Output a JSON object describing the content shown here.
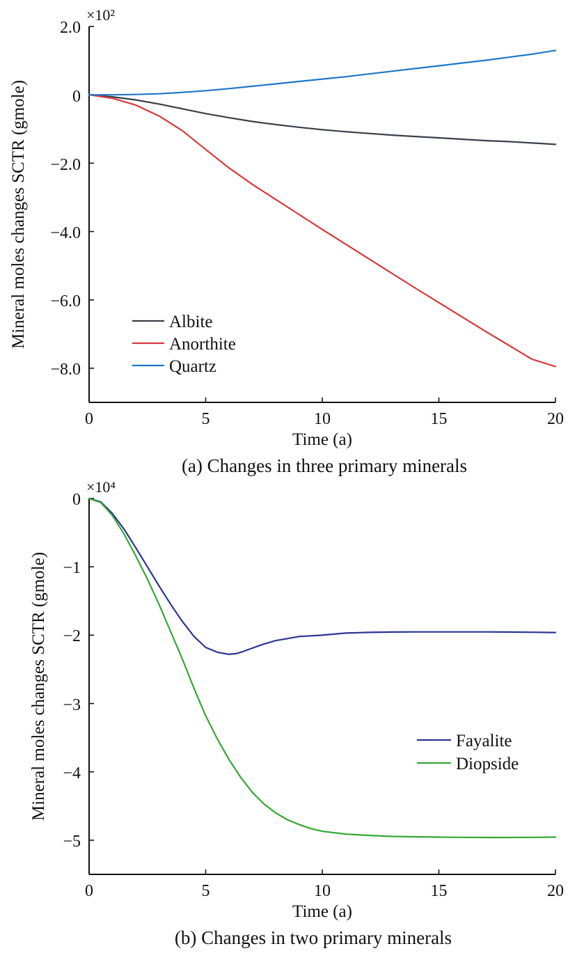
{
  "chart_data": [
    {
      "type": "line",
      "caption": "(a) Changes in three primary minerals",
      "xlabel": "Time (a)",
      "ylabel": "Mineral moles changes SCTR (gmole)",
      "y_multiplier": "×10²",
      "xlim": [
        0,
        20
      ],
      "ylim": [
        -9.0,
        2.0
      ],
      "xticks": [
        0,
        5,
        10,
        15,
        20
      ],
      "xtick_labels": [
        "0",
        "5",
        "10",
        "15",
        "20"
      ],
      "yticks": [
        2.0,
        0,
        -2.0,
        -4.0,
        -6.0,
        -8.0
      ],
      "ytick_labels": [
        "2.0",
        "0",
        "−2.0",
        "−4.0",
        "−6.0",
        "−8.0"
      ],
      "legend_position": "lower-left",
      "series": [
        {
          "name": "Albite",
          "color": "#3a3f4a",
          "x": [
            0,
            1,
            2,
            3,
            4,
            5,
            6,
            7,
            8,
            9,
            10,
            11,
            12,
            13,
            14,
            15,
            16,
            17,
            18,
            19,
            20
          ],
          "y": [
            0,
            -0.06,
            -0.15,
            -0.27,
            -0.41,
            -0.55,
            -0.67,
            -0.78,
            -0.87,
            -0.95,
            -1.02,
            -1.08,
            -1.13,
            -1.18,
            -1.22,
            -1.26,
            -1.3,
            -1.34,
            -1.37,
            -1.41,
            -1.45
          ]
        },
        {
          "name": "Anorthite",
          "color": "#d6393b",
          "x": [
            0,
            1,
            2,
            3,
            4,
            5,
            6,
            7,
            8,
            9,
            10,
            11,
            12,
            13,
            14,
            15,
            16,
            17,
            18,
            19,
            20
          ],
          "y": [
            0,
            -0.1,
            -0.3,
            -0.62,
            -1.05,
            -1.6,
            -2.14,
            -2.62,
            -3.06,
            -3.5,
            -3.94,
            -4.37,
            -4.8,
            -5.23,
            -5.66,
            -6.08,
            -6.5,
            -6.92,
            -7.33,
            -7.74,
            -7.95
          ]
        },
        {
          "name": "Quartz",
          "color": "#1f77c8",
          "x": [
            0,
            1,
            2,
            3,
            4,
            5,
            6,
            7,
            8,
            9,
            10,
            11,
            12,
            13,
            14,
            15,
            16,
            17,
            18,
            19,
            20
          ],
          "y": [
            0,
            0,
            0.01,
            0.03,
            0.07,
            0.12,
            0.18,
            0.25,
            0.32,
            0.39,
            0.46,
            0.53,
            0.61,
            0.69,
            0.77,
            0.85,
            0.93,
            1.01,
            1.1,
            1.19,
            1.3
          ]
        }
      ]
    },
    {
      "type": "line",
      "caption": "(b) Changes in two primary minerals",
      "xlabel": "Time (a)",
      "ylabel": "Mineral moles changes SCTR (gmole)",
      "y_multiplier": "×10⁴",
      "xlim": [
        0,
        20
      ],
      "ylim": [
        -5.5,
        0
      ],
      "xticks": [
        0,
        5,
        10,
        15,
        20
      ],
      "xtick_labels": [
        "0",
        "5",
        "10",
        "15",
        "20"
      ],
      "yticks": [
        0,
        -1,
        -2,
        -3,
        -4,
        -5
      ],
      "ytick_labels": [
        "0",
        "−1",
        "−2",
        "−3",
        "−4",
        "−5"
      ],
      "legend_position": "center-right",
      "series": [
        {
          "name": "Fayalite",
          "color": "#2b3590",
          "x": [
            0,
            0.5,
            1,
            1.5,
            2,
            2.5,
            3,
            3.5,
            4,
            4.5,
            5,
            5.5,
            6,
            6.3,
            6.6,
            7,
            7.5,
            8,
            8.5,
            9,
            10,
            11,
            12,
            13,
            14,
            15,
            16,
            17,
            18,
            19,
            20
          ],
          "y": [
            0,
            -0.05,
            -0.22,
            -0.45,
            -0.72,
            -1.0,
            -1.28,
            -1.55,
            -1.8,
            -2.02,
            -2.18,
            -2.25,
            -2.28,
            -2.27,
            -2.24,
            -2.19,
            -2.13,
            -2.08,
            -2.05,
            -2.02,
            -2.0,
            -1.97,
            -1.96,
            -1.955,
            -1.952,
            -1.952,
            -1.952,
            -1.952,
            -1.955,
            -1.958,
            -1.962
          ]
        },
        {
          "name": "Diopside",
          "color": "#34a832",
          "x": [
            0,
            0.5,
            1,
            1.5,
            2,
            2.5,
            3,
            3.5,
            4,
            4.5,
            5,
            5.5,
            6,
            6.5,
            7,
            7.5,
            8,
            8.5,
            9,
            9.5,
            10,
            11,
            12,
            13,
            14,
            15,
            16,
            17,
            18,
            19,
            20
          ],
          "y": [
            0,
            -0.06,
            -0.25,
            -0.52,
            -0.84,
            -1.18,
            -1.55,
            -1.95,
            -2.35,
            -2.78,
            -3.18,
            -3.52,
            -3.82,
            -4.08,
            -4.3,
            -4.47,
            -4.6,
            -4.7,
            -4.77,
            -4.83,
            -4.87,
            -4.91,
            -4.93,
            -4.945,
            -4.95,
            -4.955,
            -4.958,
            -4.96,
            -4.96,
            -4.958,
            -4.955
          ]
        }
      ]
    }
  ]
}
